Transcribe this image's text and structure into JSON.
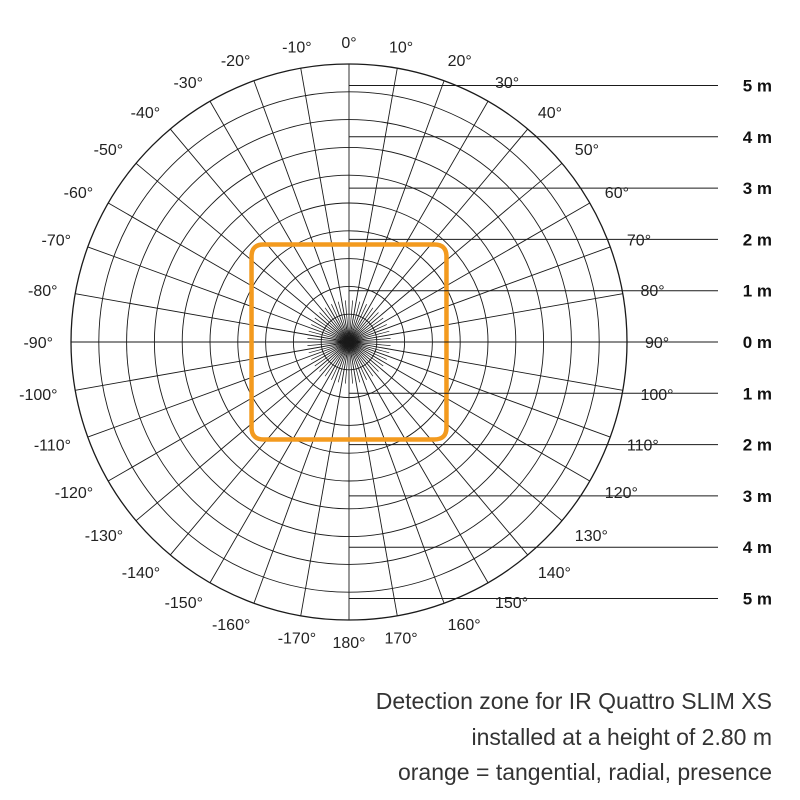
{
  "diagram": {
    "angle_labels": [
      {
        "deg": 0,
        "text": "0°"
      },
      {
        "deg": 10,
        "text": "10°"
      },
      {
        "deg": 20,
        "text": "20°"
      },
      {
        "deg": 30,
        "text": "30°"
      },
      {
        "deg": 40,
        "text": "40°"
      },
      {
        "deg": 50,
        "text": "50°"
      },
      {
        "deg": 60,
        "text": "60°"
      },
      {
        "deg": 70,
        "text": "70°"
      },
      {
        "deg": 80,
        "text": "80°"
      },
      {
        "deg": 90,
        "text": "90°"
      },
      {
        "deg": 100,
        "text": "100°"
      },
      {
        "deg": 110,
        "text": "110°"
      },
      {
        "deg": 120,
        "text": "120°"
      },
      {
        "deg": 130,
        "text": "130°"
      },
      {
        "deg": 140,
        "text": "140°"
      },
      {
        "deg": 150,
        "text": "150°"
      },
      {
        "deg": 160,
        "text": "160°"
      },
      {
        "deg": 170,
        "text": "170°"
      },
      {
        "deg": 180,
        "text": "180°"
      },
      {
        "deg": -10,
        "text": "-10°"
      },
      {
        "deg": -20,
        "text": "-20°"
      },
      {
        "deg": -30,
        "text": "-30°"
      },
      {
        "deg": -40,
        "text": "-40°"
      },
      {
        "deg": -50,
        "text": "-50°"
      },
      {
        "deg": -60,
        "text": "-60°"
      },
      {
        "deg": -70,
        "text": "-70°"
      },
      {
        "deg": -80,
        "text": "-80°"
      },
      {
        "deg": -90,
        "text": "-90°"
      },
      {
        "deg": -100,
        "text": "-100°"
      },
      {
        "deg": -110,
        "text": "-110°"
      },
      {
        "deg": -120,
        "text": "-120°"
      },
      {
        "deg": -130,
        "text": "-130°"
      },
      {
        "deg": -140,
        "text": "-140°"
      },
      {
        "deg": -150,
        "text": "-150°"
      },
      {
        "deg": -160,
        "text": "-160°"
      },
      {
        "deg": -170,
        "text": "-170°"
      }
    ],
    "distance_labels": [
      {
        "offset_m": 5,
        "text": "5 m"
      },
      {
        "offset_m": 4,
        "text": "4 m"
      },
      {
        "offset_m": 3,
        "text": "3 m"
      },
      {
        "offset_m": 2,
        "text": "2 m"
      },
      {
        "offset_m": 1,
        "text": "1 m"
      },
      {
        "offset_m": 0,
        "text": "0 m"
      },
      {
        "offset_m": -1,
        "text": "1 m"
      },
      {
        "offset_m": -2,
        "text": "2 m"
      },
      {
        "offset_m": -3,
        "text": "3 m"
      },
      {
        "offset_m": -4,
        "text": "4 m"
      },
      {
        "offset_m": -5,
        "text": "5 m"
      }
    ],
    "zone": {
      "color": "#F39A1E",
      "half_width_m": 1.9,
      "half_height_m": 1.9
    },
    "grid_color": "#1a1a1a"
  },
  "caption": {
    "line1": "Detection zone for IR Quattro SLIM XS",
    "line2": "installed at a height of 2.80 m",
    "line3": "orange = tangential, radial, presence"
  }
}
